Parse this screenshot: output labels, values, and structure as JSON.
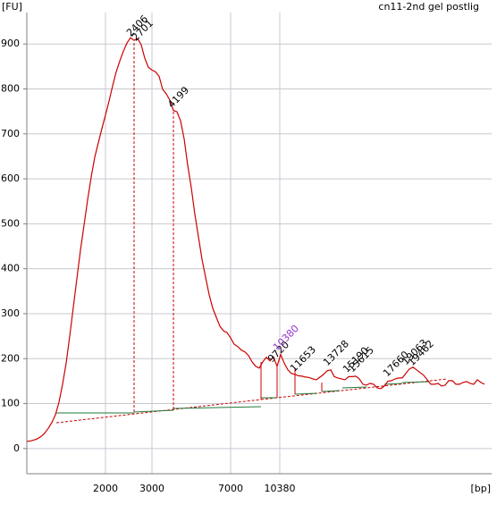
{
  "chart_data": {
    "type": "line",
    "title": "cn11-2nd gel postlig",
    "ylabel": "[FU]",
    "xlabel": "[bp]",
    "color": "#cc0000",
    "values": [
      16,
      17,
      19,
      22,
      27,
      34,
      45,
      58,
      75,
      103,
      143,
      190,
      250,
      314,
      378,
      441,
      497,
      553,
      604,
      648,
      680,
      712,
      742,
      773,
      807,
      838,
      862,
      884,
      902,
      914,
      908,
      912,
      898,
      868,
      848,
      842,
      838,
      828,
      799,
      789,
      775,
      752,
      749,
      729,
      689,
      630,
      580,
      521,
      471,
      421,
      381,
      342,
      312,
      292,
      272,
      262,
      258,
      246,
      232,
      227,
      219,
      215,
      207,
      193,
      183,
      179,
      193,
      203,
      195,
      203,
      183,
      209,
      190,
      175,
      167,
      165,
      162,
      161,
      159,
      158,
      155,
      153,
      159,
      165,
      173,
      175,
      160,
      157,
      155,
      153,
      160,
      160,
      161,
      155,
      143,
      141,
      145,
      143,
      135,
      133,
      139,
      150,
      151,
      155,
      157,
      157,
      167,
      177,
      181,
      175,
      169,
      163,
      153,
      143,
      143,
      145,
      139,
      141,
      151,
      151,
      143,
      143,
      147,
      149,
      145,
      143,
      153,
      147,
      143
    ],
    "ylim": [
      -56,
      970
    ],
    "yticks": [
      0,
      100,
      200,
      300,
      400,
      500,
      600,
      700,
      800,
      900
    ],
    "xticks": [
      2000,
      3000,
      7000,
      10380
    ],
    "grid": true,
    "peaks": [
      2406,
      2701,
      4199,
      9720,
      10380,
      11653,
      13728,
      15190,
      15615,
      17660,
      19063,
      19462
    ],
    "peak_colors": [
      "#000000",
      "#000000",
      "#000000",
      "#000000",
      "#9933cc",
      "#000000",
      "#000000",
      "#000000",
      "#000000",
      "#000000",
      "#000000",
      "#000000"
    ]
  }
}
